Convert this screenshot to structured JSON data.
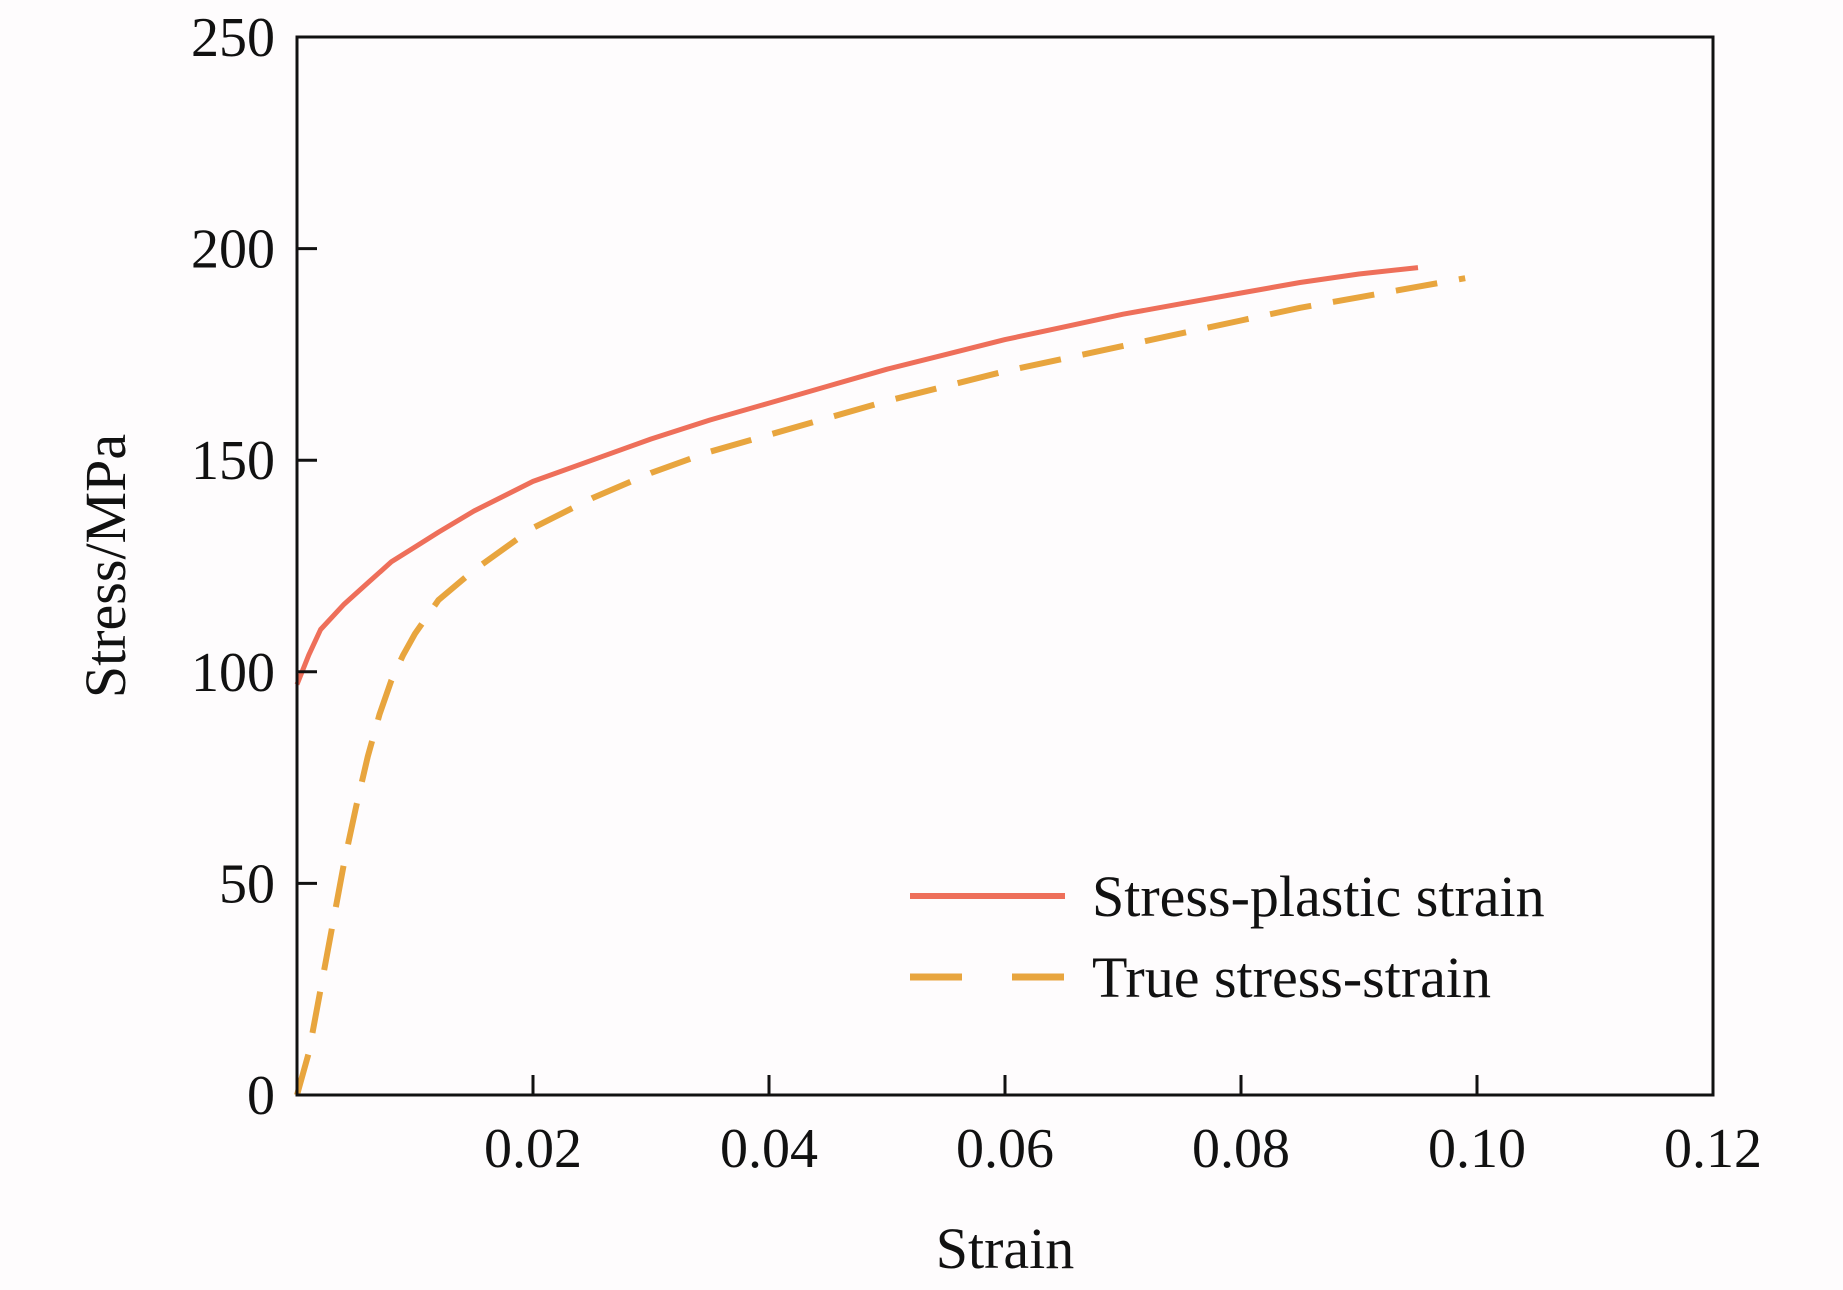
{
  "chart_data": {
    "type": "line",
    "xlabel": "Strain",
    "ylabel": "Stress/MPa",
    "xlim": [
      0,
      0.12
    ],
    "ylim": [
      0,
      250
    ],
    "x_ticks": [
      0.02,
      0.04,
      0.06,
      0.08,
      0.1,
      0.12
    ],
    "x_tick_labels": [
      "0.02",
      "0.04",
      "0.06",
      "0.08",
      "0.10",
      "0.12"
    ],
    "y_ticks": [
      0,
      50,
      100,
      150,
      200,
      250
    ],
    "y_tick_labels": [
      "0",
      "50",
      "100",
      "150",
      "200",
      "250"
    ],
    "grid": false,
    "legend_position": "bottom-right",
    "series": [
      {
        "name": "Stress-plastic strain",
        "color": "#ee6f5a",
        "style": "solid",
        "x": [
          0,
          0.001,
          0.002,
          0.004,
          0.006,
          0.008,
          0.01,
          0.012,
          0.015,
          0.02,
          0.025,
          0.03,
          0.035,
          0.04,
          0.045,
          0.05,
          0.055,
          0.06,
          0.065,
          0.07,
          0.075,
          0.08,
          0.085,
          0.09,
          0.095
        ],
        "y": [
          97,
          104,
          110,
          116,
          121,
          126,
          129.5,
          133,
          138,
          145,
          150,
          155,
          159.5,
          163.5,
          167.5,
          171.5,
          175,
          178.5,
          181.5,
          184.5,
          187,
          189.5,
          192,
          194,
          195.5
        ]
      },
      {
        "name": "True stress-strain",
        "color": "#e8a53e",
        "style": "dashed",
        "x": [
          0,
          0.001,
          0.002,
          0.003,
          0.004,
          0.005,
          0.006,
          0.007,
          0.008,
          0.009,
          0.01,
          0.012,
          0.015,
          0.02,
          0.025,
          0.03,
          0.035,
          0.04,
          0.045,
          0.05,
          0.055,
          0.06,
          0.065,
          0.07,
          0.075,
          0.08,
          0.085,
          0.09,
          0.095,
          0.099
        ],
        "y": [
          0,
          10,
          25,
          40,
          55,
          68,
          80,
          90,
          98,
          104,
          109,
          117,
          124,
          134,
          141,
          147,
          152,
          156,
          160,
          164,
          167.5,
          171,
          174,
          177,
          180,
          183,
          186,
          188.5,
          191,
          193
        ]
      }
    ]
  }
}
